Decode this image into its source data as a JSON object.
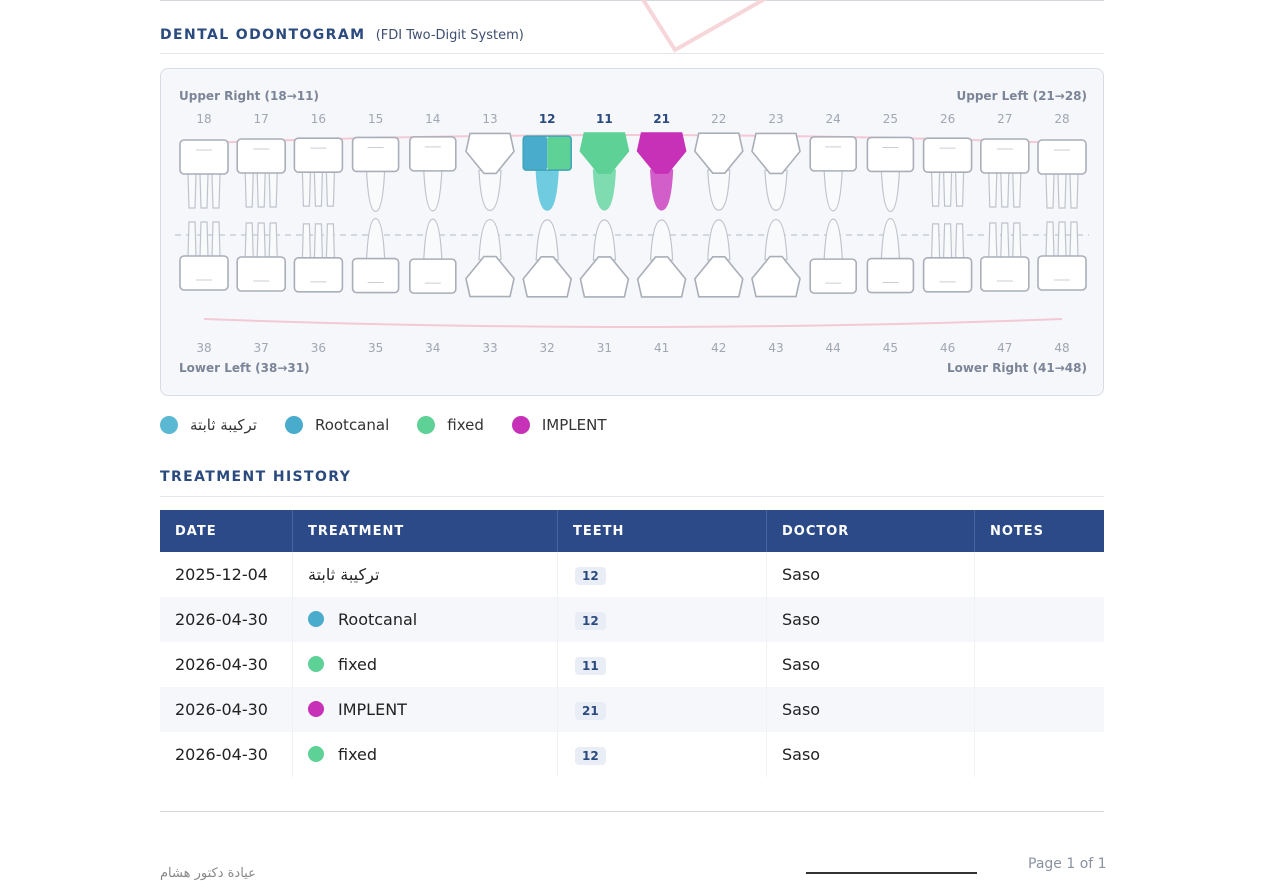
{
  "section_odontogram": {
    "title": "DENTAL ODONTOGRAM",
    "subtitle": "(FDI Two-Digit System)"
  },
  "quadrants": {
    "upper_right": "Upper Right (18→11)",
    "upper_left": "Upper Left (21→28)",
    "lower_left": "Lower Left (38→31)",
    "lower_right": "Lower Right (41→48)"
  },
  "upper_teeth": [
    "18",
    "17",
    "16",
    "15",
    "14",
    "13",
    "12",
    "11",
    "21",
    "22",
    "23",
    "24",
    "25",
    "26",
    "27",
    "28"
  ],
  "lower_teeth": [
    "38",
    "37",
    "36",
    "35",
    "34",
    "33",
    "32",
    "31",
    "41",
    "42",
    "43",
    "44",
    "45",
    "46",
    "47",
    "48"
  ],
  "highlighted_teeth": [
    "12",
    "11",
    "21"
  ],
  "colors": {
    "fixed_prosthesis": "#5bb8d2",
    "rootcanal": "#4aaccc",
    "fixed": "#5ed196",
    "implent": "#c631b7",
    "header": "#2b4a87",
    "accent_text": "#2b4a7e"
  },
  "legend": [
    {
      "label": "تركيبة ثابتة",
      "color": "#5bb8d2"
    },
    {
      "label": "Rootcanal",
      "color": "#4aaccc"
    },
    {
      "label": "fixed",
      "color": "#5ed196"
    },
    {
      "label": "IMPLENT",
      "color": "#c631b7"
    }
  ],
  "section_history": {
    "title": "TREATMENT HISTORY"
  },
  "table": {
    "headers": [
      "DATE",
      "TREATMENT",
      "TEETH",
      "DOCTOR",
      "NOTES"
    ],
    "rows": [
      {
        "date": "2025-12-04",
        "treatment": "تركيبة ثابتة",
        "color": "",
        "teeth": "12",
        "doctor": "Saso",
        "notes": ""
      },
      {
        "date": "2026-04-30",
        "treatment": "Rootcanal",
        "color": "#4aaccc",
        "teeth": "12",
        "doctor": "Saso",
        "notes": ""
      },
      {
        "date": "2026-04-30",
        "treatment": "fixed",
        "color": "#5ed196",
        "teeth": "11",
        "doctor": "Saso",
        "notes": ""
      },
      {
        "date": "2026-04-30",
        "treatment": "IMPLENT",
        "color": "#c631b7",
        "teeth": "21",
        "doctor": "Saso",
        "notes": ""
      },
      {
        "date": "2026-04-30",
        "treatment": "fixed",
        "color": "#5ed196",
        "teeth": "12",
        "doctor": "Saso",
        "notes": ""
      }
    ]
  },
  "footer": {
    "page": "Page 1 of 1",
    "signature_text": "عيادة دكتور هشام"
  }
}
